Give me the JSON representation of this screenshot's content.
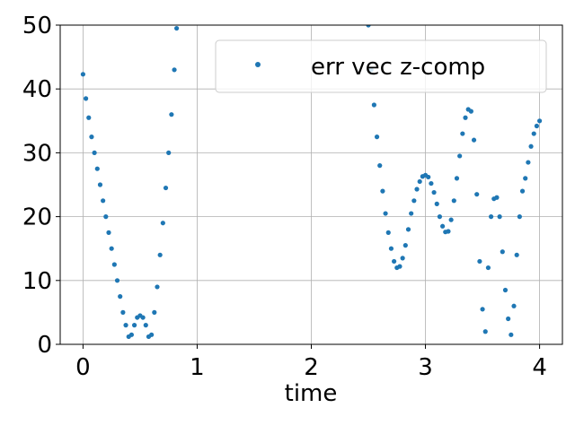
{
  "chart_data": {
    "type": "scatter",
    "xlabel": "time",
    "series": [
      {
        "name": "err vec z-comp",
        "color": "#1f77b4",
        "x": [
          0,
          0.025,
          0.05,
          0.075,
          0.1,
          0.125,
          0.15,
          0.175,
          0.2,
          0.225,
          0.25,
          0.275,
          0.3,
          0.325,
          0.35,
          0.375,
          0.4,
          0.425,
          0.45,
          0.475,
          0.5,
          0.525,
          0.55,
          0.575,
          0.6,
          0.625,
          0.65,
          0.675,
          0.7,
          0.725,
          0.75,
          0.775,
          0.8,
          0.82,
          2.5,
          2.525,
          2.55,
          2.575,
          2.6,
          2.625,
          2.65,
          2.675,
          2.7,
          2.725,
          2.75,
          2.775,
          2.8,
          2.825,
          2.85,
          2.875,
          2.9,
          2.925,
          2.95,
          2.975,
          3.0,
          3.025,
          3.05,
          3.075,
          3.1,
          3.125,
          3.15,
          3.175,
          3.2,
          3.225,
          3.25,
          3.275,
          3.3,
          3.325,
          3.35,
          3.375,
          3.4,
          3.425,
          3.45,
          3.475,
          3.5,
          3.525,
          3.55,
          3.575,
          3.6,
          3.625,
          3.65,
          3.675,
          3.7,
          3.725,
          3.75,
          3.775,
          3.8,
          3.825,
          3.85,
          3.875,
          3.9,
          3.925,
          3.95,
          3.975,
          4.0
        ],
        "values": [
          42.3,
          38.5,
          35.5,
          32.5,
          30,
          27.5,
          25,
          22.5,
          20,
          17.5,
          15,
          12.5,
          10,
          7.5,
          5,
          3,
          1.2,
          1.5,
          3,
          4.2,
          4.5,
          4.2,
          3,
          1.2,
          1.5,
          5,
          9,
          14,
          19,
          24.5,
          30,
          36,
          43,
          49.5,
          50,
          43,
          37.5,
          32.5,
          28,
          24,
          20.5,
          17.5,
          15,
          13,
          12,
          12.2,
          13.5,
          15.5,
          18,
          20.5,
          22.5,
          24.3,
          25.5,
          26.3,
          26.5,
          26.2,
          25.2,
          23.8,
          22,
          20,
          18.5,
          17.6,
          17.7,
          19.5,
          22.5,
          26,
          29.5,
          33,
          35.5,
          36.8,
          36.5,
          32,
          23.5,
          13,
          5.5,
          2,
          12,
          20,
          22.8,
          23,
          20,
          14.5,
          8.5,
          4,
          1.5,
          6,
          14,
          20,
          24,
          26,
          28.5,
          31,
          33,
          34.2,
          35
        ]
      }
    ],
    "xlim": [
      -0.2,
      4.2
    ],
    "ylim": [
      0,
      50
    ],
    "xticks": [
      0,
      1,
      2,
      3,
      4
    ],
    "yticks": [
      0,
      10,
      20,
      30,
      40,
      50
    ],
    "grid": true,
    "legend": "upper right"
  }
}
